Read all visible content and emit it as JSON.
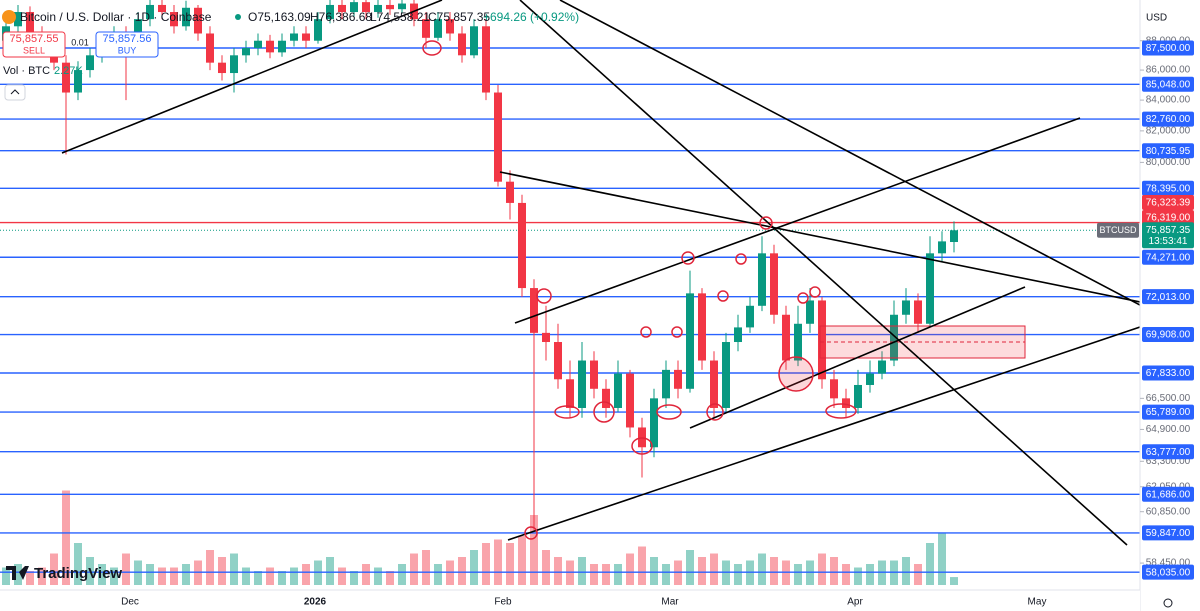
{
  "header": {
    "title": "Bitcoin / U.S. Dollar · 1D · Coinbase",
    "ohlc": [
      "O75,163.09",
      "H76,386.68",
      "L74,558.21",
      "C75,857.35"
    ],
    "change": "+694.26 (+0.92%)"
  },
  "trade": {
    "sell_price": "75,857.55",
    "sell": "SELL",
    "buy_price": "75,857.56",
    "buy": "BUY",
    "quantity": "0.01"
  },
  "volume_legend": {
    "label": "Vol · BTC",
    "value": "2.27K"
  },
  "logo": "TradingView",
  "chart_data": {
    "type": "candlestick",
    "currency": "USD",
    "log_scale": true,
    "grid": false,
    "ylim": [
      57230,
      90852
    ],
    "yticks": [
      {
        "value": 88000,
        "label": "88,000.00"
      },
      {
        "value": 86000,
        "label": "86,000.00"
      },
      {
        "value": 84000,
        "label": "84,000.00"
      },
      {
        "value": 82000,
        "label": "82,000.00"
      },
      {
        "value": 80000,
        "label": "80,000.00"
      },
      {
        "value": 66500,
        "label": "66,500.00"
      },
      {
        "value": 64900,
        "label": "64,900.00"
      },
      {
        "value": 63300,
        "label": "63,300.00"
      },
      {
        "value": 62050,
        "label": "62,050.00"
      },
      {
        "value": 60850,
        "label": "60,850.00"
      },
      {
        "value": 58450,
        "label": "58,450.00"
      }
    ],
    "up_color": "#089981",
    "down_color": "#f23645",
    "candles": [
      [
        88000,
        89500,
        87500,
        89000
      ],
      [
        89000,
        90500,
        88600,
        90000
      ],
      [
        90000,
        90400,
        88000,
        88500
      ],
      [
        88500,
        89000,
        87000,
        87500
      ],
      [
        87500,
        88000,
        86000,
        86500
      ],
      [
        86500,
        87000,
        80500,
        84500
      ],
      [
        84500,
        86600,
        84000,
        86000
      ],
      [
        86000,
        87500,
        85500,
        87000
      ],
      [
        87000,
        88500,
        86500,
        88000
      ],
      [
        88000,
        89000,
        87500,
        88500
      ],
      [
        88500,
        89000,
        84000,
        87500
      ],
      [
        87500,
        90000,
        87000,
        89500
      ],
      [
        89500,
        91000,
        89000,
        90500
      ],
      [
        90500,
        91000,
        89500,
        90000
      ],
      [
        90000,
        90500,
        88500,
        89000
      ],
      [
        89000,
        90800,
        88700,
        90300
      ],
      [
        90300,
        90500,
        88000,
        88500
      ],
      [
        88500,
        89000,
        86000,
        86500
      ],
      [
        86500,
        87000,
        85300,
        85800
      ],
      [
        85800,
        87500,
        84500,
        87000
      ],
      [
        87000,
        88000,
        86500,
        87500
      ],
      [
        87500,
        88500,
        87000,
        88000
      ],
      [
        88000,
        88400,
        86800,
        87200
      ],
      [
        87200,
        88500,
        86900,
        88000
      ],
      [
        88000,
        89000,
        87600,
        88500
      ],
      [
        88500,
        89000,
        87500,
        88000
      ],
      [
        88000,
        90000,
        87800,
        89500
      ],
      [
        89500,
        91000,
        89200,
        90500
      ],
      [
        90500,
        91000,
        89500,
        90000
      ],
      [
        90000,
        91200,
        89700,
        90700
      ],
      [
        90700,
        91000,
        89500,
        90000
      ],
      [
        90000,
        91000,
        89600,
        90500
      ],
      [
        90500,
        91000,
        89800,
        90200
      ],
      [
        90200,
        91200,
        89900,
        90600
      ],
      [
        90600,
        91000,
        89000,
        89500
      ],
      [
        89500,
        90000,
        87500,
        88200
      ],
      [
        88200,
        90000,
        88000,
        89500
      ],
      [
        89500,
        90000,
        88000,
        88500
      ],
      [
        88500,
        89000,
        86500,
        87000
      ],
      [
        87000,
        89500,
        86800,
        89000
      ],
      [
        89000,
        89500,
        84000,
        84500
      ],
      [
        84500,
        85000,
        78500,
        78800
      ],
      [
        78800,
        79500,
        76500,
        77500
      ],
      [
        77500,
        78000,
        72000,
        72500
      ],
      [
        72500,
        73000,
        60000,
        70000
      ],
      [
        70000,
        71500,
        68500,
        69500
      ],
      [
        69500,
        70500,
        67000,
        67500
      ],
      [
        67500,
        68500,
        65500,
        66000
      ],
      [
        66000,
        69500,
        65500,
        68500
      ],
      [
        68500,
        69000,
        66500,
        67000
      ],
      [
        67000,
        67500,
        65500,
        66000
      ],
      [
        66000,
        68500,
        65800,
        67800
      ],
      [
        67800,
        68000,
        64500,
        65000
      ],
      [
        65000,
        65500,
        62500,
        64000
      ],
      [
        64000,
        67000,
        63500,
        66500
      ],
      [
        66500,
        68500,
        66000,
        68000
      ],
      [
        68000,
        68500,
        66500,
        67000
      ],
      [
        67000,
        73500,
        66800,
        72200
      ],
      [
        72200,
        72500,
        68000,
        68500
      ],
      [
        68500,
        69000,
        65500,
        66000
      ],
      [
        66000,
        70000,
        65800,
        69500
      ],
      [
        69500,
        71000,
        69000,
        70300
      ],
      [
        70300,
        72000,
        70000,
        71500
      ],
      [
        71500,
        75500,
        71200,
        74500
      ],
      [
        74500,
        75000,
        70500,
        71000
      ],
      [
        71000,
        71500,
        68000,
        68500
      ],
      [
        68500,
        71500,
        68200,
        70500
      ],
      [
        70500,
        72500,
        70000,
        71800
      ],
      [
        71800,
        72000,
        67000,
        67500
      ],
      [
        67500,
        68000,
        66000,
        66500
      ],
      [
        66500,
        67000,
        65500,
        66000
      ],
      [
        66000,
        68000,
        65700,
        67200
      ],
      [
        67200,
        68500,
        66800,
        67800
      ],
      [
        67800,
        69000,
        67500,
        68500
      ],
      [
        68500,
        71800,
        68200,
        71000
      ],
      [
        71000,
        72500,
        70500,
        71800
      ],
      [
        71800,
        72200,
        70000,
        70500
      ],
      [
        70500,
        75500,
        70300,
        74500
      ],
      [
        74500,
        75800,
        74000,
        75200
      ],
      [
        75163.09,
        76386.68,
        74558.21,
        75857.35
      ]
    ],
    "volume": [
      5,
      6,
      4,
      5,
      9,
      27,
      12,
      8,
      6,
      5,
      9,
      7,
      6,
      5,
      5,
      6,
      7,
      10,
      8,
      9,
      5,
      4,
      5,
      4,
      5,
      6,
      7,
      8,
      5,
      4,
      6,
      5,
      4,
      6,
      9,
      10,
      6,
      7,
      8,
      10,
      12,
      13,
      12,
      14,
      20,
      10,
      8,
      7,
      8,
      6,
      6,
      6,
      9,
      11,
      8,
      6,
      7,
      10,
      8,
      9,
      7,
      6,
      7,
      9,
      8,
      7,
      6,
      7,
      9,
      8,
      6,
      5,
      6,
      7,
      7,
      8,
      6,
      12,
      15,
      2.27
    ],
    "level_color": "#2962ff",
    "levels": [
      {
        "value": 87500,
        "label": "87,500.00"
      },
      {
        "value": 85048,
        "label": "85,048.00"
      },
      {
        "value": 82760,
        "label": "82,760.00"
      },
      {
        "value": 80735.95,
        "label": "80,735.95"
      },
      {
        "value": 78395,
        "label": "78,395.00"
      },
      {
        "value": 74271,
        "label": "74,271.00"
      },
      {
        "value": 72013,
        "label": "72,013.00"
      },
      {
        "value": 69908,
        "label": "69,908.00"
      },
      {
        "value": 67833,
        "label": "67,833.00"
      },
      {
        "value": 65789,
        "label": "65,789.00"
      },
      {
        "value": 63777,
        "label": "63,777.00"
      },
      {
        "value": 61686,
        "label": "61,686.00"
      },
      {
        "value": 59847,
        "label": "59,847.00"
      },
      {
        "value": 58035,
        "label": "58,035.00"
      }
    ],
    "resistance": {
      "value": 76319,
      "label": "76,319.00",
      "color": "#f23645"
    },
    "alert": {
      "value": 76323.39,
      "label": "76,323.39"
    },
    "last": {
      "symbol": "BTCUSD",
      "value": 75857.35,
      "label": "75,857.35",
      "countdown": "13:53:41"
    },
    "x_labels": [
      "Dec",
      "2026",
      "Feb",
      "Mar",
      "Apr",
      "May"
    ]
  }
}
